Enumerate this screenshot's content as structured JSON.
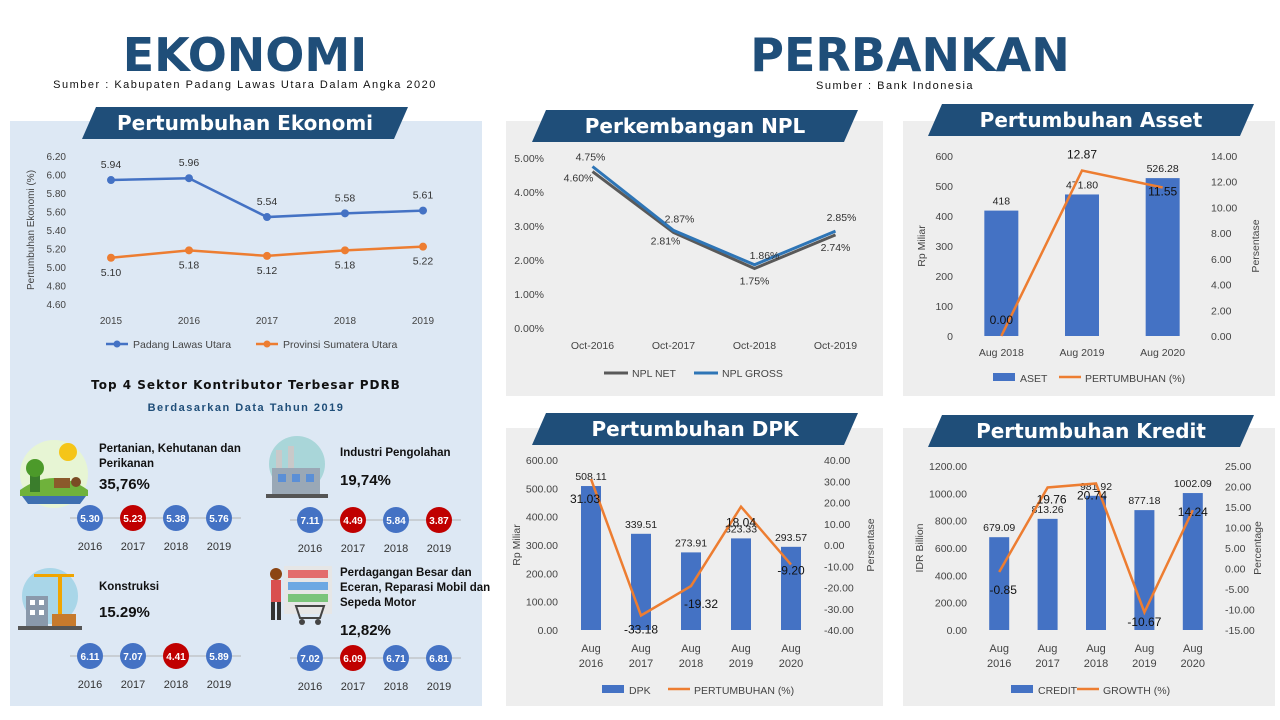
{
  "header": {
    "ekonomi_title": "EKONOMI",
    "ekonomi_source": "Sumber : Kabupaten Padang Lawas Utara Dalam Angka 2020",
    "perbankan_title": "PERBANKAN",
    "perbankan_source": "Sumber : Bank Indonesia"
  },
  "sectors": {
    "title": "Top 4 Sektor Kontributor Terbesar PDRB",
    "subtitle": "Berdasarkan Data Tahun 2019",
    "items": [
      {
        "name_lines": [
          "Pertanian, Kehutanan dan",
          "Perikanan"
        ],
        "share": "35,76%",
        "icon": "agriculture-icon",
        "years": [
          "2016",
          "2017",
          "2018",
          "2019"
        ],
        "values": [
          "5.30",
          "5.23",
          "5.38",
          "5.76"
        ],
        "highlight": [
          false,
          true,
          false,
          false
        ]
      },
      {
        "name_lines": [
          "Industri Pengolahan"
        ],
        "share": "19,74%",
        "icon": "factory-icon",
        "years": [
          "2016",
          "2017",
          "2018",
          "2019"
        ],
        "values": [
          "7.11",
          "4.49",
          "5.84",
          "3.87"
        ],
        "highlight": [
          false,
          true,
          false,
          true
        ]
      },
      {
        "name_lines": [
          "Konstruksi"
        ],
        "share": "15.29%",
        "icon": "construction-icon",
        "years": [
          "2016",
          "2017",
          "2018",
          "2019"
        ],
        "values": [
          "6.11",
          "7.07",
          "4.41",
          "5.89"
        ],
        "highlight": [
          false,
          false,
          true,
          false
        ]
      },
      {
        "name_lines": [
          "Perdagangan Besar dan",
          "Eceran, Reparasi Mobil dan",
          "Sepeda Motor"
        ],
        "share": "12,82%",
        "icon": "shopping-icon",
        "years": [
          "2016",
          "2017",
          "2018",
          "2019"
        ],
        "values": [
          "7.02",
          "6.09",
          "6.71",
          "6.81"
        ],
        "highlight": [
          false,
          true,
          false,
          false
        ]
      }
    ],
    "colors": {
      "normal": "#4472c4",
      "highlight": "#c00000"
    }
  },
  "chart_data": [
    {
      "id": "pertumbuhan-ekonomi",
      "type": "line",
      "title": "Pertumbuhan Ekonomi",
      "ylabel": "Pertumbuhan Ekonomi (%)",
      "xlabel": "",
      "ylim": [
        4.6,
        6.2
      ],
      "yticks": [
        "4.60",
        "4.80",
        "5.00",
        "5.20",
        "5.40",
        "5.60",
        "5.80",
        "6.00",
        "6.20"
      ],
      "x": [
        "2015",
        "2016",
        "2017",
        "2018",
        "2019"
      ],
      "series": [
        {
          "name": "Padang Lawas Utara",
          "values": [
            5.94,
            5.96,
            5.54,
            5.58,
            5.61
          ],
          "labels": [
            "5.94",
            "5.96",
            "5.54",
            "5.58",
            "5.61"
          ],
          "color": "#4472c4"
        },
        {
          "name": "Provinsi Sumatera Utara",
          "values": [
            5.1,
            5.18,
            5.12,
            5.18,
            5.22
          ],
          "labels": [
            "5.10",
            "5.18",
            "5.12",
            "5.18",
            "5.22"
          ],
          "color": "#ed7d31"
        }
      ],
      "grid": false,
      "legend": "bottom"
    },
    {
      "id": "perkembangan-npl",
      "type": "line",
      "title": "Perkembangan NPL",
      "ylim": [
        0,
        5
      ],
      "yticks": [
        "0.00%",
        "1.00%",
        "2.00%",
        "3.00%",
        "4.00%",
        "5.00%"
      ],
      "x": [
        "Oct-2016",
        "Oct-2017",
        "Oct-2018",
        "Oct-2019"
      ],
      "series": [
        {
          "name": "NPL NET",
          "values": [
            4.6,
            2.81,
            1.75,
            2.74
          ],
          "labels": [
            "4.60%",
            "2.81%",
            "1.75%",
            "2.74%"
          ],
          "color": "#595959"
        },
        {
          "name": "NPL GROSS",
          "values": [
            4.75,
            2.87,
            1.86,
            2.85
          ],
          "labels": [
            "4.75%",
            "2.87%",
            "1.86%",
            "2.85%"
          ],
          "color": "#2e75b6"
        }
      ],
      "grid": false,
      "legend": "bottom"
    },
    {
      "id": "pertumbuhan-asset",
      "type": "bar",
      "title": "Pertumbuhan Asset",
      "ylabel": "Rp Miliar",
      "y2label": "Persentase",
      "ylim": [
        0,
        600
      ],
      "yticks": [
        "0",
        "100",
        "200",
        "300",
        "400",
        "500",
        "600"
      ],
      "y2lim": [
        0,
        14
      ],
      "y2ticks": [
        "0.00",
        "2.00",
        "4.00",
        "6.00",
        "8.00",
        "10.00",
        "12.00",
        "14.00"
      ],
      "categories": [
        "Aug 2018",
        "Aug 2019",
        "Aug 2020"
      ],
      "series": [
        {
          "name": "ASET",
          "kind": "bar",
          "values": [
            418,
            471.8,
            526.28
          ],
          "labels": [
            "418",
            "471.80",
            "526.28"
          ],
          "color": "#4472c4"
        },
        {
          "name": "PERTUMBUHAN (%)",
          "kind": "line",
          "values": [
            0.0,
            12.87,
            11.55
          ],
          "labels": [
            "0.00",
            "12.87",
            "11.55"
          ],
          "color": "#ed7d31"
        }
      ],
      "legend": "bottom"
    },
    {
      "id": "pertumbuhan-dpk",
      "type": "bar",
      "title": "Pertumbuhan DPK",
      "ylabel": "Rp Miliar",
      "y2label": "Persentase",
      "ylim": [
        0,
        600
      ],
      "yticks": [
        "0.00",
        "100.00",
        "200.00",
        "300.00",
        "400.00",
        "500.00",
        "600.00"
      ],
      "y2lim": [
        -40,
        40
      ],
      "y2ticks": [
        "-40.00",
        "-30.00",
        "-20.00",
        "-10.00",
        "0.00",
        "10.00",
        "20.00",
        "30.00",
        "40.00"
      ],
      "categories": [
        [
          "Aug",
          "2016"
        ],
        [
          "Aug",
          "2017"
        ],
        [
          "Aug",
          "2018"
        ],
        [
          "Aug",
          "2019"
        ],
        [
          "Aug",
          "2020"
        ]
      ],
      "series": [
        {
          "name": "DPK",
          "kind": "bar",
          "values": [
            508.11,
            339.51,
            273.91,
            323.33,
            293.57
          ],
          "labels": [
            "508.11",
            "339.51",
            "273.91",
            "323.33",
            "293.57"
          ],
          "color": "#4472c4"
        },
        {
          "name": "PERTUMBUHAN (%)",
          "kind": "line",
          "values": [
            31.03,
            -33.18,
            -19.32,
            18.04,
            -9.2
          ],
          "labels": [
            "31.03",
            "-33.18",
            "-19.32",
            "18.04",
            "-9.20"
          ],
          "color": "#ed7d31"
        }
      ],
      "legend": "bottom"
    },
    {
      "id": "pertumbuhan-kredit",
      "type": "bar",
      "title": "Pertumbuhan Kredit",
      "ylabel": "IDR Billion",
      "y2label": "Percentage",
      "ylim": [
        0,
        1200
      ],
      "yticks": [
        "0.00",
        "200.00",
        "400.00",
        "600.00",
        "800.00",
        "1000.00",
        "1200.00"
      ],
      "y2lim": [
        -15,
        25
      ],
      "y2ticks": [
        "-15.00",
        "-10.00",
        "-5.00",
        "0.00",
        "5.00",
        "10.00",
        "15.00",
        "20.00",
        "25.00"
      ],
      "categories": [
        [
          "Aug",
          "2016"
        ],
        [
          "Aug",
          "2017"
        ],
        [
          "Aug",
          "2018"
        ],
        [
          "Aug",
          "2019"
        ],
        [
          "Aug",
          "2020"
        ]
      ],
      "series": [
        {
          "name": "CREDIT",
          "kind": "bar",
          "values": [
            679.09,
            813.26,
            981.92,
            877.18,
            1002.09
          ],
          "labels": [
            "679.09",
            "813.26",
            "981.92",
            "877.18",
            "1002.09"
          ],
          "color": "#4472c4"
        },
        {
          "name": "GROWTH (%)",
          "kind": "line",
          "values": [
            -0.85,
            19.76,
            20.74,
            -10.67,
            14.24
          ],
          "labels": [
            "-0.85",
            "19.76",
            "20.74",
            "-10.67",
            "14.24"
          ],
          "color": "#ed7d31"
        }
      ],
      "legend": "bottom"
    }
  ]
}
